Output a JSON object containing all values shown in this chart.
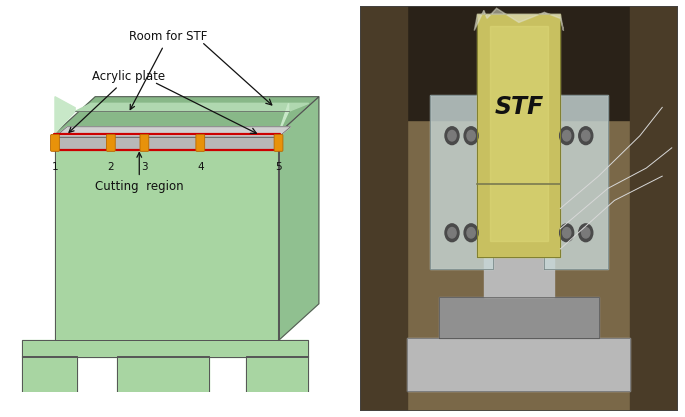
{
  "fig_width": 6.85,
  "fig_height": 4.17,
  "dpi": 100,
  "bg_color": "#ffffff",
  "left_panel": {
    "box_color": "#a8d5a2",
    "box_top_color": "#88b888",
    "box_right_color": "#90c090",
    "box_edge_color": "#555555",
    "inner_color": "#c8e8c8",
    "inner_back_color": "#b0d8b0",
    "acrylic_color": "#b8b8b8",
    "acrylic_top_color": "#d0d0d0",
    "acrylic_edge_color": "#666666",
    "red_rect_color": "#cc0000",
    "orange_peg_color": "#e8920a",
    "orange_peg_edge": "#b86800",
    "room_stf_text": "Room for STF",
    "acrylic_text": "Acrylic plate",
    "cutting_text": "Cutting  region",
    "peg_labels": [
      "1",
      "2",
      "3",
      "4",
      "5"
    ]
  },
  "right_panel": {
    "stf_text": "STF",
    "photo_bg": "#7a6848",
    "photo_dark_top": "#2a2218",
    "photo_dark_sides": "#4a3c28",
    "stf_yellow": "#c8c060",
    "stf_light": "#ddd878",
    "acrylic_plate_color": "#c8d8d8",
    "metal_color": "#909090",
    "metal_light": "#b8b8b8"
  }
}
